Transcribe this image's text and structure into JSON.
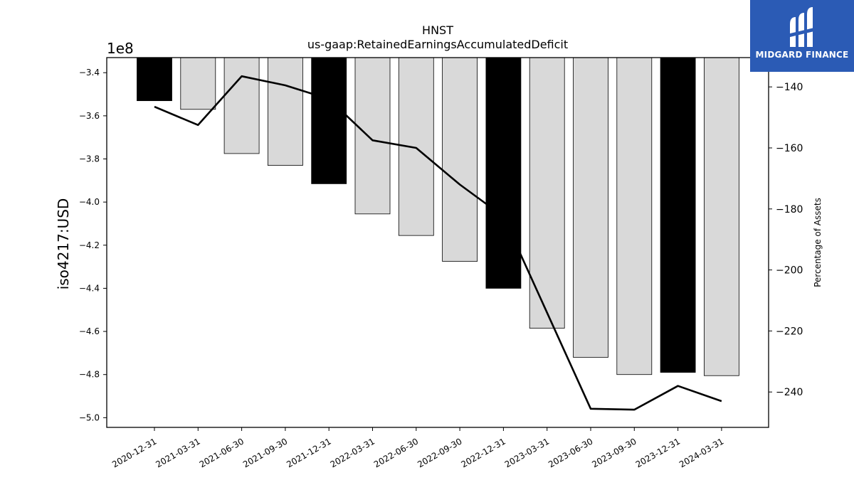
{
  "chart_data": {
    "type": "bar",
    "title": "HNST",
    "subtitle": "us-gaap:RetainedEarningsAccumulatedDeficit",
    "ylabel": "iso4217:USD",
    "y2label": "Percentage of Assets",
    "y_offset_label": "1e8",
    "categories": [
      "2020-12-31",
      "2021-03-31",
      "2021-06-30",
      "2021-09-30",
      "2021-12-31",
      "2022-03-31",
      "2022-06-30",
      "2022-09-30",
      "2022-12-31",
      "2023-03-31",
      "2023-06-30",
      "2023-09-30",
      "2023-12-31",
      "2024-03-31"
    ],
    "series": [
      {
        "values": [
          -353000000.0,
          -357000000.0,
          -377500000.0,
          -383000000.0,
          -391500000.0,
          -405500000.0,
          -415500000.0,
          -427500000.0,
          -440000000.0,
          -458500000.0,
          -472000000.0,
          -480000000.0,
          -479000000.0,
          -480500000.0
        ],
        "highlight": [
          true,
          false,
          false,
          false,
          true,
          false,
          false,
          false,
          true,
          false,
          false,
          false,
          true,
          false
        ],
        "color_default": "#d9d9d9",
        "color_highlight": "#000000"
      },
      {
        "type": "line",
        "axis": "right",
        "values": [
          -146.5,
          -152.5,
          -136.5,
          -139.5,
          -144.0,
          -157.5,
          -160.0,
          -172.0,
          -182.5,
          -214.0,
          -245.5,
          -245.8,
          -238.0,
          -243.0
        ],
        "color": "#000000"
      }
    ],
    "ylim": [
      -504500000.0,
      -333000000.0
    ],
    "yticks": [
      -500000000.0,
      -480000000.0,
      -460000000.0,
      -440000000.0,
      -420000000.0,
      -400000000.0,
      -380000000.0,
      -360000000.0,
      -340000000.0
    ],
    "ytick_labels": [
      "−5.0",
      "−4.8",
      "−4.6",
      "−4.4",
      "−4.2",
      "−4.0",
      "−3.8",
      "−3.6",
      "−3.4"
    ],
    "y2lim": [
      -251.6,
      -130.4
    ],
    "y2ticks": [
      -240,
      -220,
      -200,
      -180,
      -160,
      -140
    ],
    "y2tick_labels": [
      "−240",
      "−220",
      "−200",
      "−180",
      "−160",
      "−140"
    ],
    "grid": false
  },
  "logo": {
    "text": "MIDGARD FINANCE",
    "bg": "#2b5bb5",
    "icon": "midgard-logo-icon"
  }
}
